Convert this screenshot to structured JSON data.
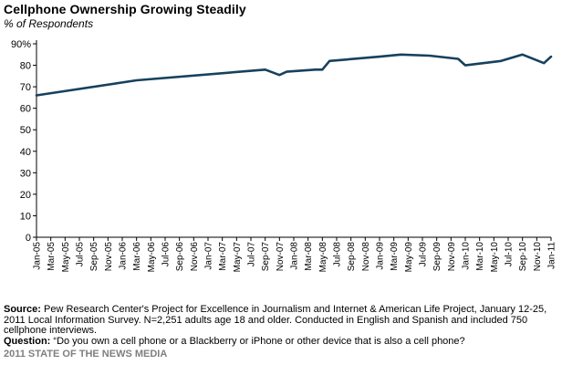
{
  "header": {
    "title": "Cellphone Ownership Growing Steadily",
    "subtitle": "% of Respondents"
  },
  "chart_data": {
    "type": "line",
    "title": "Cellphone Ownership Growing Steadily",
    "ylabel": "% of Respondents",
    "xlabel": "",
    "ylim": [
      0,
      90
    ],
    "yticks": [
      "0",
      "10",
      "20",
      "30",
      "40",
      "50",
      "60",
      "70",
      "80",
      "90%"
    ],
    "grid": false,
    "legend": "none",
    "line_color": "#17415f",
    "x_ticks": [
      "Jan-05",
      "Mar-05",
      "May-05",
      "Jul-05",
      "Sep-05",
      "Nov-05",
      "Jan-06",
      "Mar-06",
      "May-06",
      "Jul-06",
      "Sep-06",
      "Nov-06",
      "Jan-07",
      "Mar-07",
      "May-07",
      "Jul-07",
      "Sep-07",
      "Nov-07",
      "Jan-08",
      "Mar-08",
      "May-08",
      "Jul-08",
      "Sep-08",
      "Nov-08",
      "Jan-09",
      "Mar-09",
      "May-09",
      "Jul-09",
      "Sep-09",
      "Nov-09",
      "Jan-10",
      "Mar-10",
      "May-10",
      "Jul-10",
      "Sep-10",
      "Nov-10",
      "Jan-11"
    ],
    "series": [
      {
        "points": [
          {
            "x": "Jan-05",
            "y": 66
          },
          {
            "x": "Mar-06",
            "y": 73
          },
          {
            "x": "Sep-07",
            "y": 78
          },
          {
            "x": "Nov-07",
            "y": 75.5
          },
          {
            "x": "Dec-07",
            "y": 77
          },
          {
            "x": "Apr-08",
            "y": 78
          },
          {
            "x": "May-08",
            "y": 78
          },
          {
            "x": "Jun-08",
            "y": 82
          },
          {
            "x": "Jan-09",
            "y": 84
          },
          {
            "x": "Apr-09",
            "y": 85
          },
          {
            "x": "Aug-09",
            "y": 84.5
          },
          {
            "x": "Dec-09",
            "y": 83
          },
          {
            "x": "Jan-10",
            "y": 80
          },
          {
            "x": "Jun-10",
            "y": 82
          },
          {
            "x": "Sep-10",
            "y": 85
          },
          {
            "x": "Dec-10",
            "y": 81
          },
          {
            "x": "Jan-11",
            "y": 84
          }
        ]
      }
    ]
  },
  "footer": {
    "source_label": "Source:",
    "source_text": " Pew Research Center's Project for Excellence in Journalism and Internet & American Life Project, January 12-25, 2011 Local Information Survey.  N=2,251 adults age 18 and older. Conducted in English and Spanish and included 750 cellphone interviews.",
    "question_label": "Question:",
    "question_text": " “Do you own a cell phone or a Blackberry or iPhone or other device that is also a cell phone?",
    "brand": "2011 STATE OF THE NEWS MEDIA"
  }
}
